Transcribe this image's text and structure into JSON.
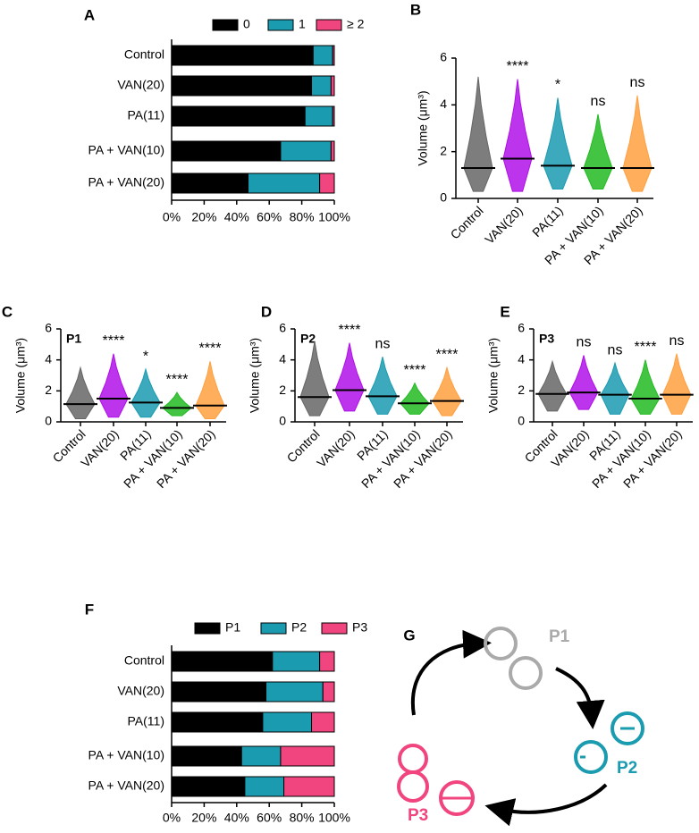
{
  "chart_data": [
    {
      "type": "bar",
      "panel": "A",
      "orientation": "horizontal",
      "stacked": true,
      "categories": [
        "Control",
        "VAN(20)",
        "PA(11)",
        "PA + VAN(10)",
        "PA + VAN(20)"
      ],
      "series": [
        {
          "name": "0",
          "color": "#000000",
          "values": [
            87,
            86,
            82,
            67,
            47
          ]
        },
        {
          "name": "1",
          "color": "#1a9bb0",
          "values": [
            12,
            12,
            17,
            31,
            44
          ]
        },
        {
          "name": "≥ 2",
          "color": "#f0457e",
          "values": [
            1,
            2,
            1,
            2,
            9
          ]
        }
      ],
      "xlim": [
        0,
        100
      ],
      "xticks": [
        {
          "value": 0,
          "label": "0%"
        },
        {
          "value": 20,
          "label": "20%"
        },
        {
          "value": 40,
          "label": "40%"
        },
        {
          "value": 60,
          "label": "60%"
        },
        {
          "value": 80,
          "label": "80%"
        },
        {
          "value": 100,
          "label": "100%"
        }
      ],
      "legend": "top"
    },
    {
      "type": "strip",
      "panel": "B",
      "ylabel": "Volume (μm³)",
      "categories": [
        "Control",
        "VAN(20)",
        "PA(11)",
        "PA + VAN(10)",
        "PA + VAN(20)"
      ],
      "colors": [
        "#666666",
        "#b010e8",
        "#1a9bb0",
        "#22bb22",
        "#ffa040"
      ],
      "values": [
        1.3,
        1.7,
        1.4,
        1.3,
        1.3
      ],
      "min": [
        0.3,
        0.3,
        0.4,
        0.4,
        0.3
      ],
      "max": [
        5.2,
        5.1,
        4.3,
        3.6,
        4.4
      ],
      "annotations": [
        null,
        "****",
        "*",
        "ns",
        "ns"
      ],
      "ylim": [
        0,
        6
      ],
      "yticks": [
        0,
        2,
        4,
        6
      ]
    },
    {
      "type": "strip",
      "panel": "C",
      "inset": "P1",
      "ylabel": "Volume (μm³)",
      "categories": [
        "Control",
        "VAN(20)",
        "PA(11)",
        "PA + VAN(10)",
        "PA + VAN(20)"
      ],
      "colors": [
        "#666666",
        "#b010e8",
        "#1a9bb0",
        "#22bb22",
        "#ffa040"
      ],
      "values": [
        1.15,
        1.5,
        1.25,
        0.9,
        1.05
      ],
      "min": [
        0.2,
        0.3,
        0.3,
        0.4,
        0.2
      ],
      "max": [
        3.5,
        4.4,
        3.4,
        1.9,
        3.9
      ],
      "annotations": [
        null,
        "****",
        "*",
        "****",
        "****"
      ],
      "ylim": [
        0,
        6
      ],
      "yticks": [
        0,
        2,
        4,
        6
      ]
    },
    {
      "type": "strip",
      "panel": "D",
      "inset": "P2",
      "ylabel": "Volume (μm³)",
      "categories": [
        "Control",
        "VAN(20)",
        "PA(11)",
        "PA + VAN(10)",
        "PA + VAN(20)"
      ],
      "colors": [
        "#666666",
        "#b010e8",
        "#1a9bb0",
        "#22bb22",
        "#ffa040"
      ],
      "values": [
        1.6,
        2.05,
        1.65,
        1.2,
        1.35
      ],
      "min": [
        0.4,
        0.7,
        0.5,
        0.5,
        0.4
      ],
      "max": [
        5.2,
        5.1,
        4.2,
        2.5,
        3.5
      ],
      "annotations": [
        null,
        "****",
        "ns",
        "****",
        "****"
      ],
      "ylim": [
        0,
        6
      ],
      "yticks": [
        0,
        2,
        4,
        6
      ]
    },
    {
      "type": "strip",
      "panel": "E",
      "inset": "P3",
      "ylabel": "Volume (μm³)",
      "categories": [
        "Control",
        "VAN(20)",
        "PA(11)",
        "PA + VAN(10)",
        "PA + VAN(20)"
      ],
      "colors": [
        "#666666",
        "#b010e8",
        "#1a9bb0",
        "#22bb22",
        "#ffa040"
      ],
      "values": [
        1.8,
        1.9,
        1.75,
        1.5,
        1.75
      ],
      "min": [
        0.7,
        0.8,
        0.5,
        0.5,
        0.5
      ],
      "max": [
        3.9,
        4.3,
        3.8,
        4.0,
        4.4
      ],
      "annotations": [
        null,
        "ns",
        "ns",
        "****",
        "ns"
      ],
      "ylim": [
        0,
        6
      ],
      "yticks": [
        0,
        2,
        4,
        6
      ]
    },
    {
      "type": "bar",
      "panel": "F",
      "orientation": "horizontal",
      "stacked": true,
      "categories": [
        "Control",
        "VAN(20)",
        "PA(11)",
        "PA + VAN(10)",
        "PA + VAN(20)"
      ],
      "series": [
        {
          "name": "P1",
          "color": "#000000",
          "values": [
            62,
            58,
            56,
            43,
            45
          ]
        },
        {
          "name": "P2",
          "color": "#1a9bb0",
          "values": [
            29,
            35,
            30,
            24,
            24
          ]
        },
        {
          "name": "P3",
          "color": "#f0457e",
          "values": [
            9,
            7,
            14,
            33,
            31
          ]
        }
      ],
      "xlim": [
        0,
        100
      ],
      "xticks": [
        {
          "value": 0,
          "label": "0%"
        },
        {
          "value": 20,
          "label": "20%"
        },
        {
          "value": 40,
          "label": "40%"
        },
        {
          "value": 60,
          "label": "60%"
        },
        {
          "value": 80,
          "label": "80%"
        },
        {
          "value": 100,
          "label": "100%"
        }
      ],
      "legend": "top"
    }
  ],
  "diagram": {
    "panel": "G",
    "nodes": [
      "P1",
      "P2",
      "P3"
    ]
  }
}
